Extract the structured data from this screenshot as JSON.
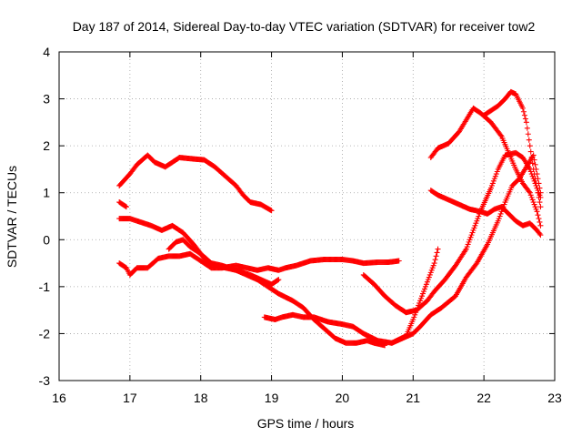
{
  "chart_data": {
    "type": "scatter",
    "title": "Day 187 of 2014, Sidereal Day-to-day VTEC variation (SDTVAR) for receiver tow2",
    "xlabel": "GPS time / hours",
    "ylabel": "SDTVAR / TECUs",
    "xlim": [
      16,
      23
    ],
    "ylim": [
      -3,
      4
    ],
    "xticks": [
      16,
      17,
      18,
      19,
      20,
      21,
      22,
      23
    ],
    "yticks": [
      -3,
      -2,
      -1,
      0,
      1,
      2,
      3,
      4
    ],
    "grid": true,
    "legend": "none",
    "marker": "plus",
    "color": "#ff0000",
    "series": [
      {
        "points": [
          [
            16.85,
            1.15
          ],
          [
            17.0,
            1.4
          ],
          [
            17.1,
            1.6
          ],
          [
            17.25,
            1.8
          ],
          [
            17.35,
            1.65
          ],
          [
            17.5,
            1.55
          ],
          [
            17.6,
            1.65
          ],
          [
            17.7,
            1.75
          ],
          [
            17.9,
            1.72
          ],
          [
            18.05,
            1.7
          ],
          [
            18.2,
            1.55
          ],
          [
            18.35,
            1.35
          ],
          [
            18.5,
            1.15
          ],
          [
            18.6,
            0.95
          ],
          [
            18.7,
            0.8
          ],
          [
            18.85,
            0.75
          ],
          [
            19.0,
            0.62
          ]
        ]
      },
      {
        "points": [
          [
            16.85,
            0.8
          ],
          [
            16.95,
            0.7
          ]
        ]
      },
      {
        "points": [
          [
            16.85,
            0.45
          ],
          [
            17.0,
            0.45
          ],
          [
            17.1,
            0.4
          ],
          [
            17.3,
            0.3
          ],
          [
            17.45,
            0.2
          ],
          [
            17.6,
            0.3
          ],
          [
            17.75,
            0.15
          ],
          [
            17.9,
            -0.1
          ],
          [
            18.05,
            -0.4
          ],
          [
            18.2,
            -0.55
          ],
          [
            18.35,
            -0.6
          ],
          [
            18.5,
            -0.65
          ],
          [
            18.65,
            -0.75
          ],
          [
            18.8,
            -0.85
          ],
          [
            18.95,
            -1.0
          ],
          [
            19.1,
            -1.15
          ],
          [
            19.3,
            -1.3
          ],
          [
            19.45,
            -1.45
          ],
          [
            19.6,
            -1.7
          ],
          [
            19.75,
            -1.9
          ],
          [
            19.9,
            -2.1
          ],
          [
            20.05,
            -2.2
          ],
          [
            20.2,
            -2.2
          ],
          [
            20.35,
            -2.15
          ],
          [
            20.45,
            -2.2
          ],
          [
            20.6,
            -2.25
          ]
        ]
      },
      {
        "points": [
          [
            16.85,
            -0.5
          ],
          [
            16.95,
            -0.6
          ],
          [
            17.0,
            -0.75
          ],
          [
            17.1,
            -0.6
          ],
          [
            17.25,
            -0.6
          ],
          [
            17.4,
            -0.4
          ],
          [
            17.55,
            -0.35
          ],
          [
            17.7,
            -0.35
          ],
          [
            17.85,
            -0.3
          ],
          [
            18.0,
            -0.45
          ],
          [
            18.15,
            -0.6
          ],
          [
            18.3,
            -0.6
          ],
          [
            18.5,
            -0.55
          ],
          [
            18.65,
            -0.6
          ],
          [
            18.8,
            -0.65
          ],
          [
            18.95,
            -0.6
          ],
          [
            19.1,
            -0.65
          ],
          [
            19.2,
            -0.6
          ],
          [
            19.35,
            -0.55
          ],
          [
            19.55,
            -0.45
          ],
          [
            19.75,
            -0.42
          ],
          [
            20.0,
            -0.42
          ],
          [
            20.15,
            -0.45
          ],
          [
            20.3,
            -0.5
          ],
          [
            20.5,
            -0.48
          ],
          [
            20.65,
            -0.48
          ],
          [
            20.8,
            -0.45
          ]
        ]
      },
      {
        "points": [
          [
            17.55,
            -0.2
          ],
          [
            17.65,
            -0.05
          ],
          [
            17.75,
            0.0
          ],
          [
            17.85,
            -0.15
          ],
          [
            18.0,
            -0.3
          ],
          [
            18.15,
            -0.5
          ],
          [
            18.3,
            -0.55
          ],
          [
            18.5,
            -0.65
          ],
          [
            18.7,
            -0.75
          ],
          [
            18.85,
            -0.85
          ],
          [
            19.0,
            -0.95
          ],
          [
            19.1,
            -0.85
          ]
        ]
      },
      {
        "points": [
          [
            18.9,
            -1.65
          ],
          [
            19.05,
            -1.7
          ],
          [
            19.15,
            -1.65
          ],
          [
            19.3,
            -1.6
          ],
          [
            19.45,
            -1.65
          ],
          [
            19.6,
            -1.65
          ],
          [
            19.8,
            -1.75
          ],
          [
            20.0,
            -1.8
          ],
          [
            20.15,
            -1.85
          ],
          [
            20.3,
            -2.0
          ],
          [
            20.5,
            -2.15
          ],
          [
            20.7,
            -2.2
          ],
          [
            20.85,
            -2.1
          ],
          [
            21.0,
            -2.0
          ],
          [
            21.1,
            -1.85
          ],
          [
            21.25,
            -1.6
          ],
          [
            21.4,
            -1.45
          ],
          [
            21.6,
            -1.2
          ],
          [
            21.75,
            -0.8
          ],
          [
            21.9,
            -0.5
          ],
          [
            22.05,
            -0.1
          ],
          [
            22.2,
            0.4
          ],
          [
            22.3,
            0.8
          ],
          [
            22.4,
            1.15
          ],
          [
            22.5,
            1.3
          ],
          [
            22.6,
            1.55
          ],
          [
            22.7,
            1.8
          ],
          [
            22.8,
            1.0
          ]
        ]
      },
      {
        "points": [
          [
            20.3,
            -0.75
          ],
          [
            20.45,
            -0.95
          ],
          [
            20.6,
            -1.2
          ],
          [
            20.75,
            -1.4
          ],
          [
            20.9,
            -1.55
          ],
          [
            21.05,
            -1.5
          ],
          [
            21.2,
            -1.3
          ],
          [
            21.3,
            -1.1
          ],
          [
            21.45,
            -0.85
          ],
          [
            21.6,
            -0.55
          ],
          [
            21.75,
            -0.2
          ],
          [
            21.85,
            0.2
          ],
          [
            21.95,
            0.6
          ],
          [
            22.1,
            1.1
          ],
          [
            22.2,
            1.5
          ],
          [
            22.3,
            1.8
          ],
          [
            22.45,
            1.85
          ],
          [
            22.55,
            1.75
          ],
          [
            22.65,
            1.5
          ],
          [
            22.75,
            1.1
          ],
          [
            22.8,
            0.7
          ]
        ]
      },
      {
        "points": [
          [
            20.7,
            -2.2
          ],
          [
            20.9,
            -2.05
          ],
          [
            21.0,
            -1.7
          ],
          [
            21.1,
            -1.3
          ],
          [
            21.2,
            -0.9
          ],
          [
            21.3,
            -0.5
          ],
          [
            21.35,
            -0.2
          ]
        ]
      },
      {
        "points": [
          [
            21.25,
            1.75
          ],
          [
            21.35,
            1.95
          ],
          [
            21.5,
            2.05
          ],
          [
            21.65,
            2.3
          ],
          [
            21.75,
            2.55
          ],
          [
            21.85,
            2.8
          ],
          [
            21.95,
            2.7
          ],
          [
            22.1,
            2.5
          ],
          [
            22.25,
            2.2
          ],
          [
            22.35,
            1.85
          ],
          [
            22.45,
            1.5
          ],
          [
            22.55,
            1.2
          ],
          [
            22.65,
            1.0
          ],
          [
            22.75,
            0.6
          ],
          [
            22.8,
            0.3
          ]
        ]
      },
      {
        "points": [
          [
            21.25,
            1.05
          ],
          [
            21.35,
            0.95
          ],
          [
            21.5,
            0.85
          ],
          [
            21.65,
            0.75
          ],
          [
            21.8,
            0.65
          ],
          [
            21.95,
            0.6
          ],
          [
            22.05,
            0.55
          ],
          [
            22.15,
            0.65
          ],
          [
            22.25,
            0.7
          ],
          [
            22.35,
            0.55
          ],
          [
            22.45,
            0.4
          ],
          [
            22.55,
            0.3
          ],
          [
            22.65,
            0.35
          ],
          [
            22.75,
            0.2
          ],
          [
            22.8,
            0.1
          ]
        ]
      },
      {
        "points": [
          [
            22.0,
            2.65
          ],
          [
            22.1,
            2.75
          ],
          [
            22.2,
            2.85
          ],
          [
            22.3,
            3.0
          ],
          [
            22.38,
            3.15
          ],
          [
            22.45,
            3.1
          ],
          [
            22.55,
            2.8
          ],
          [
            22.6,
            2.5
          ],
          [
            22.65,
            2.0
          ],
          [
            22.7,
            1.5
          ],
          [
            22.75,
            1.1
          ],
          [
            22.8,
            0.9
          ]
        ]
      }
    ]
  }
}
